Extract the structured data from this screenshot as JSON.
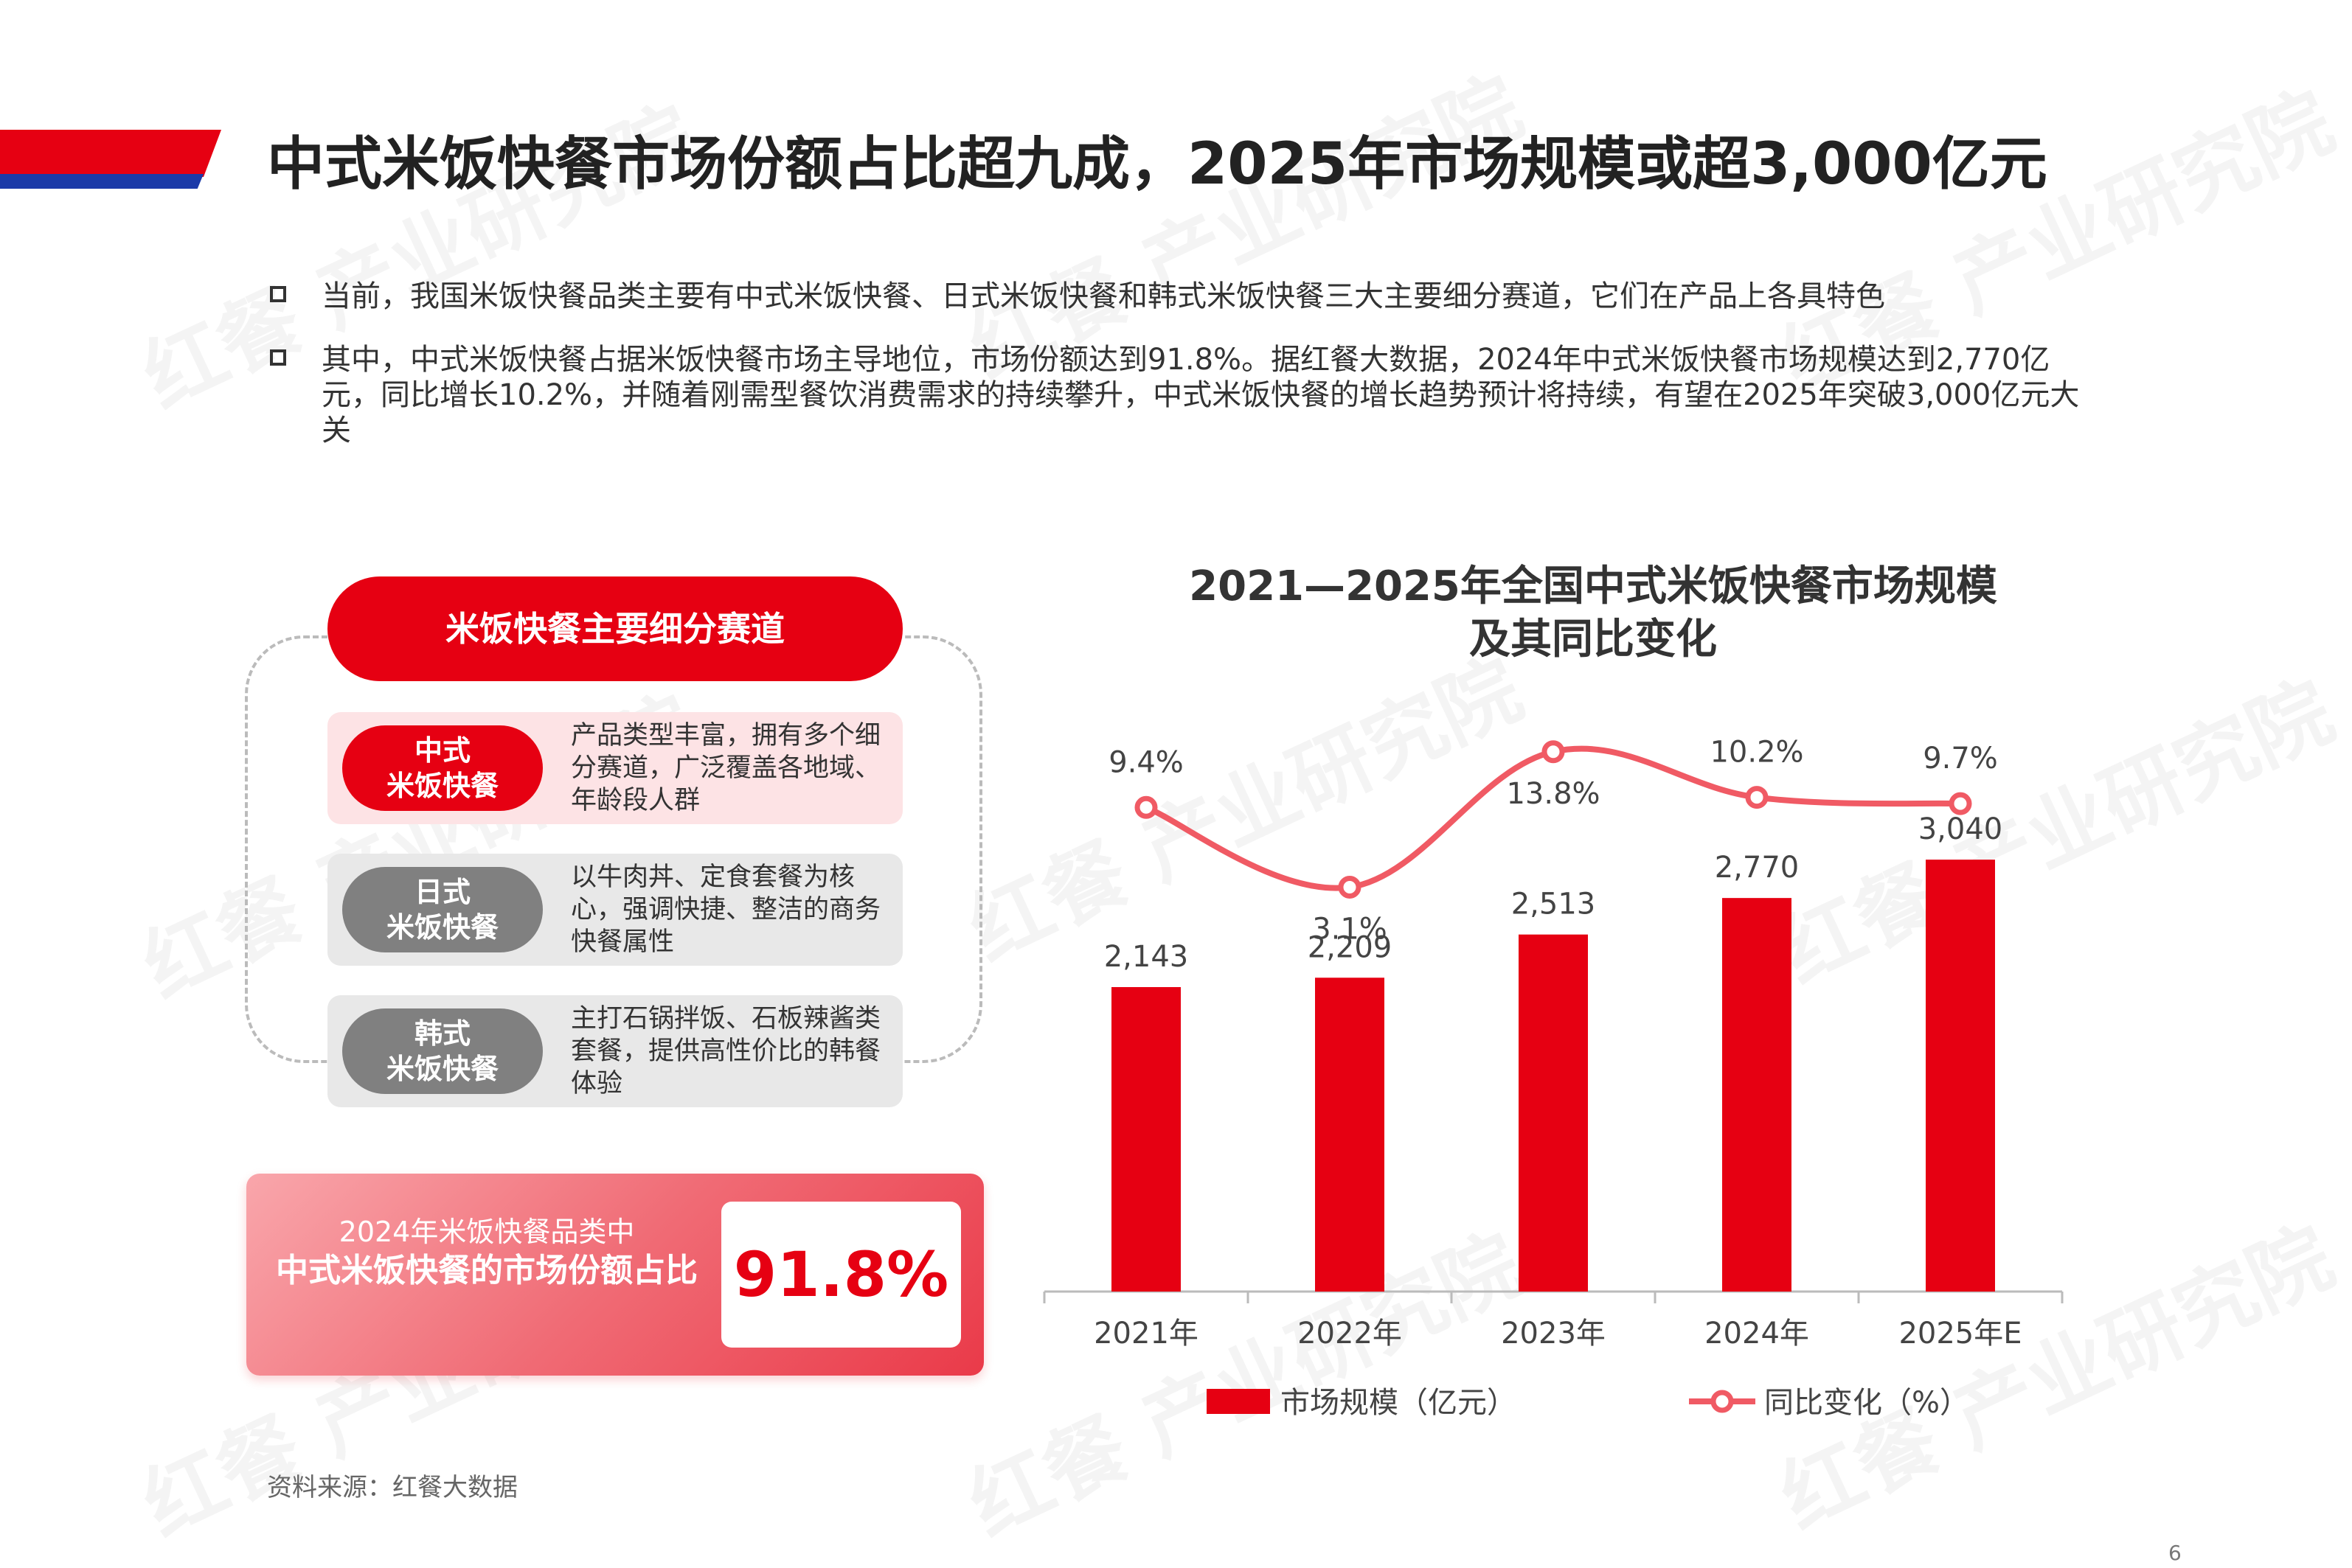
{
  "page_title": "中式米饭快餐市场份额占比超九成，2025年市场规模或超3,000亿元",
  "bullets": [
    "当前，我国米饭快餐品类主要有中式米饭快餐、日式米饭快餐和韩式米饭快餐三大主要细分赛道，它们在产品上各具特色",
    "其中，中式米饭快餐占据米饭快餐市场主导地位，市场份额达到91.8%。据红餐大数据，2024年中式米饭快餐市场规模达到2,770亿元，同比增长10.2%，并随着刚需型餐饮消费需求的持续攀升，中式米饭快餐的增长趋势预计将持续，有望在2025年突破3,000亿元大关"
  ],
  "segments": {
    "header": "米饭快餐主要细分赛道",
    "items": [
      {
        "line1": "中式",
        "line2": "米饭快餐",
        "desc": "产品类型丰富，拥有多个细分赛道，广泛覆盖各地域、年龄段人群",
        "pill_color": "#e60012",
        "bg_color": "#fde3e5"
      },
      {
        "line1": "日式",
        "line2": "米饭快餐",
        "desc": "以牛肉丼、定食套餐为核心，强调快捷、整洁的商务快餐属性",
        "pill_color": "#808080",
        "bg_color": "#e8e8e8"
      },
      {
        "line1": "韩式",
        "line2": "米饭快餐",
        "desc": "主打石锅拌饭、石板辣酱类套餐，提供高性价比的韩餐体验",
        "pill_color": "#808080",
        "bg_color": "#e8e8e8"
      }
    ]
  },
  "share": {
    "line1": "2024年米饭快餐品类中",
    "line2": "中式米饭快餐的市场份额占比",
    "value": "91.8%"
  },
  "source": "资料来源：红餐大数据",
  "page_number": "6",
  "watermark": "红餐 产业研究院",
  "chart_data": {
    "type": "bar",
    "title_line1": "2021—2025年全国中式米饭快餐市场规模",
    "title_line2": "及其同比变化",
    "categories": [
      "2021年",
      "2022年",
      "2023年",
      "2024年",
      "2025年E"
    ],
    "series": [
      {
        "name": "市场规模（亿元）",
        "type": "bar",
        "values": [
          2143,
          2209,
          2513,
          2770,
          3040
        ],
        "labels": [
          "2,143",
          "2,209",
          "2,513",
          "2,770",
          "3,040"
        ],
        "color": "#e60012"
      },
      {
        "name": "同比变化（%）",
        "type": "line",
        "values": [
          9.4,
          3.1,
          13.8,
          10.2,
          9.7
        ],
        "labels": [
          "9.4%",
          "3.1%",
          "13.8%",
          "10.2%",
          "9.7%"
        ],
        "color": "#f05a64"
      }
    ],
    "ylim_bar": [
      0,
      3300
    ],
    "ylim_line": [
      -20,
      16
    ]
  }
}
